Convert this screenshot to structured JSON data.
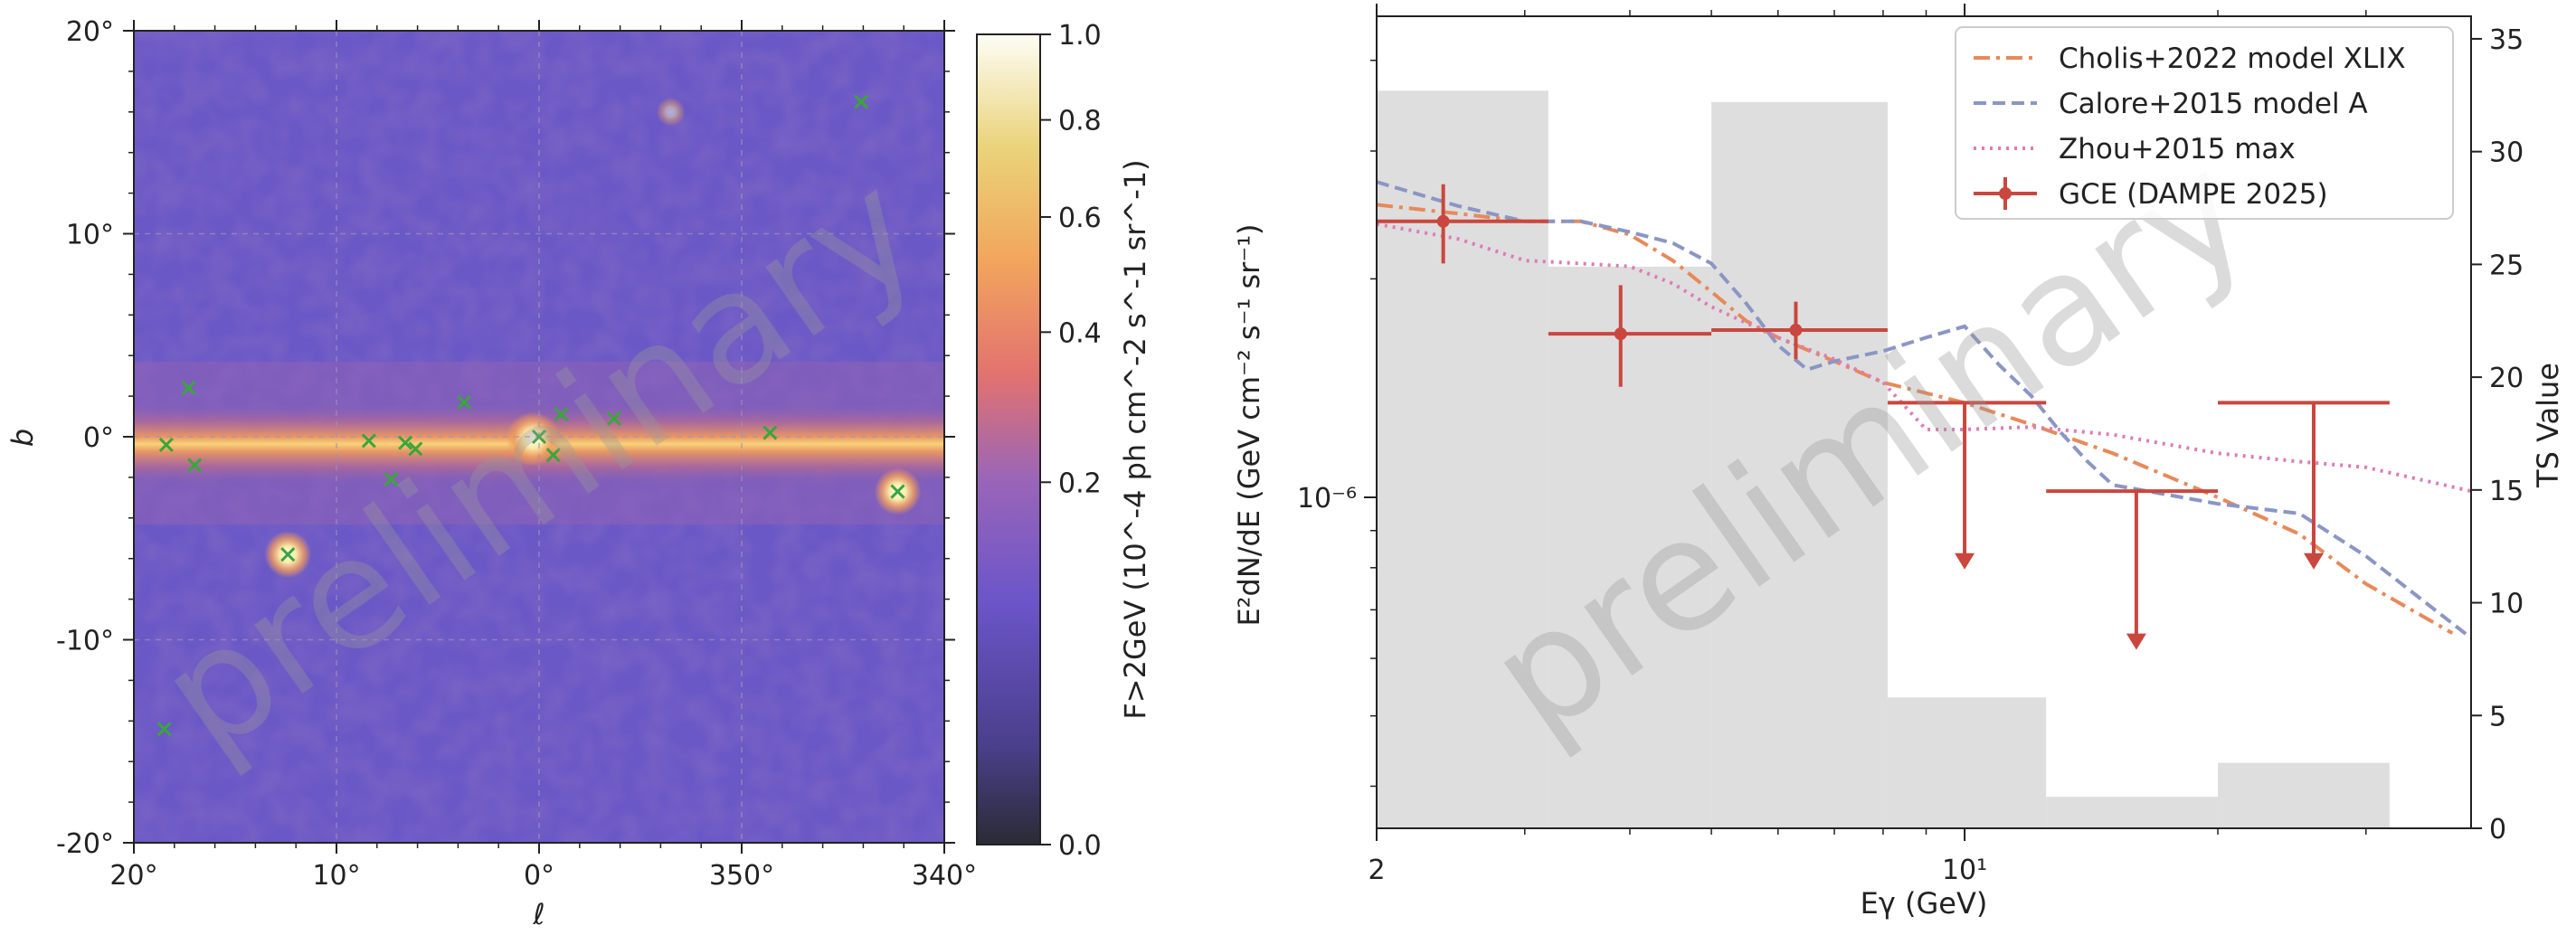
{
  "watermark": "preliminary",
  "sky_map": {
    "x_label": "ℓ",
    "y_label": "b",
    "x_ticks": [
      "20°",
      "10°",
      "0°",
      "350°",
      "340°"
    ],
    "y_ticks": [
      "20°",
      "10°",
      "0°",
      "-10°",
      "-20°"
    ],
    "colorbar_label": "F>2GeV (10^-4 ph cm^-2 s^-1 sr^-1)",
    "colorbar_ticks": [
      "1.0",
      "0.8",
      "0.6",
      "0.4",
      "0.2",
      "0.0"
    ],
    "sources": [
      {
        "l": 18.4,
        "b": -0.4
      },
      {
        "l": 17.3,
        "b": 2.4
      },
      {
        "l": 17.0,
        "b": -1.4
      },
      {
        "l": 12.4,
        "b": -5.8
      },
      {
        "l": 8.4,
        "b": -0.2
      },
      {
        "l": 7.3,
        "b": -2.1
      },
      {
        "l": 6.6,
        "b": -0.3
      },
      {
        "l": 6.1,
        "b": -0.6
      },
      {
        "l": 3.7,
        "b": 1.7
      },
      {
        "l": 0.0,
        "b": 0.0
      },
      {
        "l": -0.7,
        "b": -0.9
      },
      {
        "l": -1.1,
        "b": 1.1
      },
      {
        "l": -3.7,
        "b": 0.9
      },
      {
        "l": -11.4,
        "b": 0.2
      },
      {
        "l": -17.7,
        "b": -2.7
      },
      {
        "l": -15.9,
        "b": 16.5
      },
      {
        "l": 18.5,
        "b": -14.4
      }
    ],
    "bright_spots": [
      {
        "l": 0.3,
        "b": -0.1
      },
      {
        "l": -17.7,
        "b": -2.7
      },
      {
        "l": 12.4,
        "b": -5.8
      },
      {
        "l": -6.5,
        "b": 16.0
      }
    ]
  },
  "chart_data": {
    "type": "line",
    "x_label": "Eγ (GeV)",
    "y_label": "E²dN/dE (GeV cm⁻² s⁻¹ sr⁻¹)",
    "y2_label": "TS Value",
    "xlim": [
      2,
      40
    ],
    "x_ticks": [
      "2",
      "10¹"
    ],
    "y_tick": "10⁻⁶",
    "y2_ticks": [
      "0",
      "5",
      "10",
      "15",
      "20",
      "25",
      "30",
      "35"
    ],
    "y2lim": [
      0,
      36
    ],
    "ts_bars": [
      {
        "x0": 2.0,
        "x1": 3.2,
        "ts": 32.7
      },
      {
        "x0": 3.2,
        "x1": 5.0,
        "ts": 24.9
      },
      {
        "x0": 5.0,
        "x1": 8.1,
        "ts": 32.2
      },
      {
        "x0": 8.1,
        "x1": 12.5,
        "ts": 5.8
      },
      {
        "x0": 12.5,
        "x1": 20.0,
        "ts": 1.4
      },
      {
        "x0": 20.0,
        "x1": 32.0,
        "ts": 2.9
      }
    ],
    "series": [
      {
        "name": "Cholis+2022 model XLIX",
        "style": "dashdot",
        "color": "#e8895a",
        "points": [
          [
            2.0,
            2.53e-06
          ],
          [
            2.5,
            2.46e-06
          ],
          [
            3.0,
            2.4e-06
          ],
          [
            3.5,
            2.4e-06
          ],
          [
            4.0,
            2.3e-06
          ],
          [
            4.5,
            2.12e-06
          ],
          [
            5.0,
            1.92e-06
          ],
          [
            5.5,
            1.75e-06
          ],
          [
            6.0,
            1.66e-06
          ],
          [
            7.0,
            1.54e-06
          ],
          [
            8.0,
            1.44e-06
          ],
          [
            10.0,
            1.35e-06
          ],
          [
            12.0,
            1.26e-06
          ],
          [
            15.0,
            1.15e-06
          ],
          [
            20.0,
            1e-06
          ],
          [
            25.0,
            8.9e-07
          ],
          [
            30.0,
            7.6e-07
          ],
          [
            38.0,
            6.5e-07
          ]
        ]
      },
      {
        "name": "Calore+2015 model A",
        "style": "dashed",
        "color": "#8a96c4",
        "points": [
          [
            2.0,
            2.72e-06
          ],
          [
            2.5,
            2.52e-06
          ],
          [
            3.0,
            2.4e-06
          ],
          [
            3.5,
            2.4e-06
          ],
          [
            4.0,
            2.32e-06
          ],
          [
            4.5,
            2.24e-06
          ],
          [
            5.0,
            2.1e-06
          ],
          [
            5.5,
            1.85e-06
          ],
          [
            6.0,
            1.62e-06
          ],
          [
            6.5,
            1.5e-06
          ],
          [
            7.0,
            1.54e-06
          ],
          [
            8.0,
            1.59e-06
          ],
          [
            9.0,
            1.66e-06
          ],
          [
            10.0,
            1.72e-06
          ],
          [
            11.0,
            1.52e-06
          ],
          [
            12.0,
            1.38e-06
          ],
          [
            13.0,
            1.23e-06
          ],
          [
            14.0,
            1.12e-06
          ],
          [
            15.0,
            1.04e-06
          ],
          [
            20.0,
            9.8e-07
          ],
          [
            25.0,
            9.5e-07
          ],
          [
            30.0,
            8.3e-07
          ],
          [
            40.0,
            6.4e-07
          ]
        ]
      },
      {
        "name": "Zhou+2015 max",
        "style": "dotted",
        "color": "#dc7cb8",
        "points": [
          [
            2.0,
            2.38e-06
          ],
          [
            2.5,
            2.27e-06
          ],
          [
            3.0,
            2.12e-06
          ],
          [
            3.5,
            2.1e-06
          ],
          [
            4.0,
            2.08e-06
          ],
          [
            4.5,
            1.97e-06
          ],
          [
            5.0,
            1.83e-06
          ],
          [
            6.0,
            1.66e-06
          ],
          [
            7.0,
            1.55e-06
          ],
          [
            8.0,
            1.44e-06
          ],
          [
            9.0,
            1.24e-06
          ],
          [
            10.0,
            1.24e-06
          ],
          [
            12.0,
            1.25e-06
          ],
          [
            15.0,
            1.22e-06
          ],
          [
            20.0,
            1.15e-06
          ],
          [
            25.0,
            1.12e-06
          ],
          [
            30.0,
            1.1e-06
          ],
          [
            40.0,
            1.02e-06
          ]
        ]
      }
    ],
    "gce_points": [
      {
        "name": "GCE (DAMPE 2025)",
        "x": 2.4,
        "y": 2.4e-06,
        "xerr": [
          2.0,
          3.2
        ],
        "yerr": [
          2.1e-06,
          2.7e-06
        ]
      },
      {
        "x": 3.9,
        "y": 1.68e-06,
        "xerr": [
          3.2,
          5.0
        ],
        "yerr": [
          1.42e-06,
          1.96e-06
        ]
      },
      {
        "x": 6.3,
        "y": 1.7e-06,
        "xerr": [
          5.0,
          8.1
        ],
        "yerr": [
          1.55e-06,
          1.86e-06
        ]
      }
    ],
    "upper_limits": [
      {
        "x": 10.0,
        "y": 1.35e-06,
        "xerr": [
          8.1,
          12.5
        ],
        "arrow_to": 8e-07
      },
      {
        "x": 16.0,
        "y": 1.02e-06,
        "xerr": [
          12.5,
          20.0
        ],
        "arrow_to": 6.2e-07
      },
      {
        "x": 26.0,
        "y": 1.35e-06,
        "xerr": [
          20.0,
          32.0
        ],
        "arrow_to": 8e-07
      }
    ],
    "gce_label": "GCE (DAMPE 2025)"
  }
}
